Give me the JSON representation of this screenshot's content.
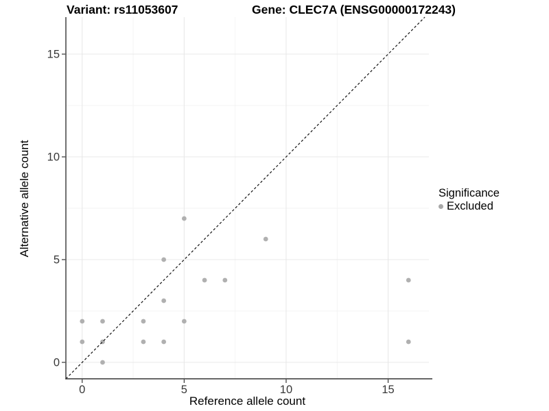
{
  "chart_data": {
    "type": "scatter",
    "title_variant": "Variant: rs11053607",
    "title_gene": "Gene: CLEC7A (ENSG00000172243)",
    "xlabel": "Reference allele count",
    "ylabel": "Alternative allele count",
    "xlim": [
      -0.8,
      17.0
    ],
    "ylim": [
      -0.8,
      16.8
    ],
    "xticks": [
      0,
      5,
      10,
      15
    ],
    "yticks": [
      0,
      5,
      10,
      15
    ],
    "xminor": [
      2.5,
      7.5,
      12.5
    ],
    "yminor": [
      2.5,
      7.5,
      12.5
    ],
    "grid": "major+minor",
    "legend_position": "right",
    "identity_line": {
      "slope": 1,
      "intercept": 0,
      "style": "dashed",
      "color": "#111111"
    },
    "legend": {
      "title": "Significance",
      "items": [
        {
          "label": "Excluded",
          "marker": "circle",
          "color": "#a8a8a8"
        }
      ]
    },
    "series": [
      {
        "name": "Excluded",
        "color": "#b0b0b0",
        "points": [
          [
            0,
            1
          ],
          [
            0,
            2
          ],
          [
            1,
            0
          ],
          [
            1,
            1
          ],
          [
            1,
            2
          ],
          [
            3,
            1
          ],
          [
            3,
            2
          ],
          [
            4,
            1
          ],
          [
            4,
            3
          ],
          [
            4,
            5
          ],
          [
            5,
            2
          ],
          [
            5,
            7
          ],
          [
            6,
            4
          ],
          [
            7,
            4
          ],
          [
            9,
            6
          ],
          [
            16,
            1
          ],
          [
            16,
            4
          ]
        ]
      }
    ]
  },
  "style": {
    "grid_major_color": "#e8e8e8",
    "grid_minor_color": "#f3f3f3",
    "axis_color": "#333333",
    "tick_color": "#333333",
    "tick_label_color": "#383838",
    "point_radius": 3.4,
    "tick_label_size": 16.5
  }
}
